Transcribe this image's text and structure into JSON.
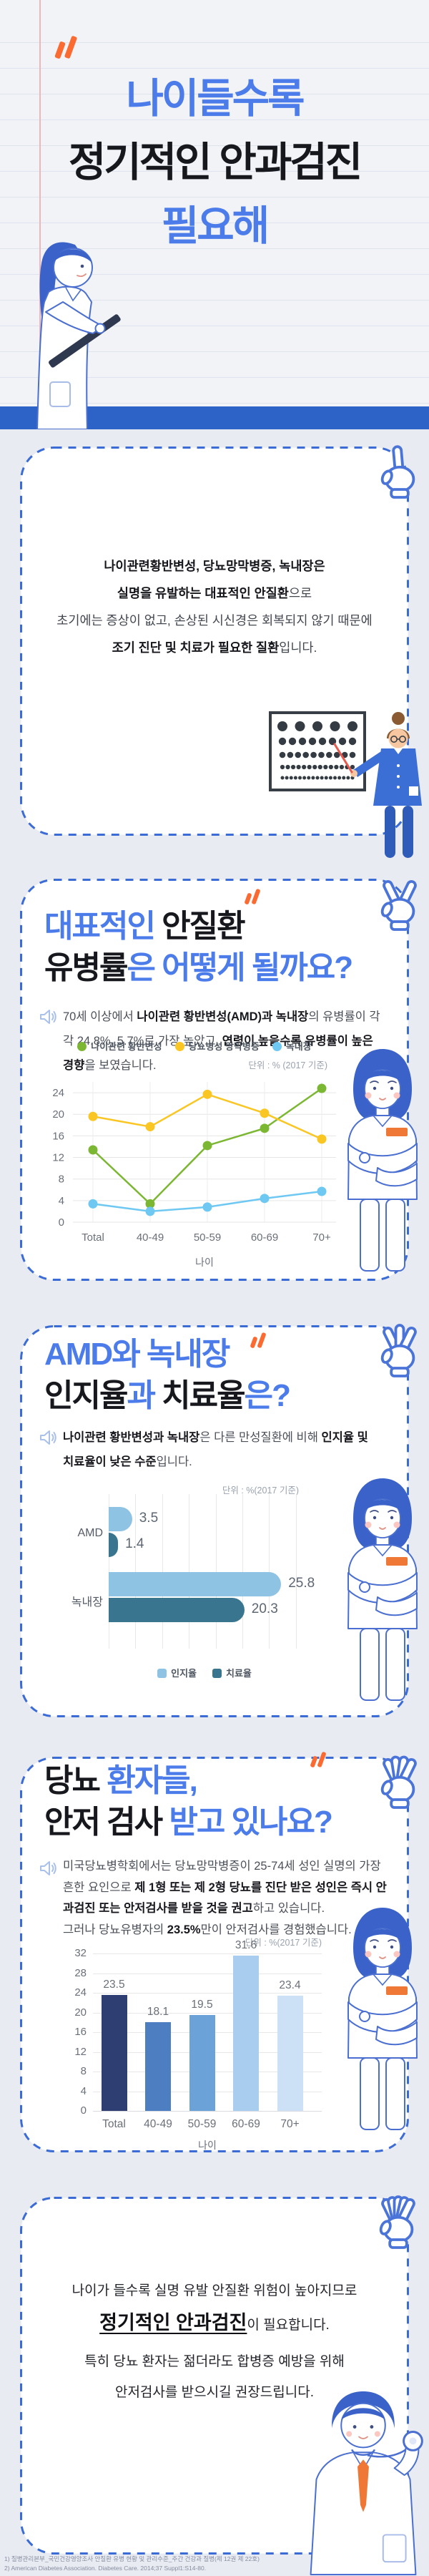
{
  "colors": {
    "accent_blue": "#4b7ce9",
    "band_blue": "#2d62c6",
    "border_blue": "#3b6cd6",
    "orange": "#fb6a30"
  },
  "icons": {
    "hands": "counting-hand-icons-1-to-5",
    "paragraph_marker": "megaphone-icon",
    "title_marker": "quote-accent"
  },
  "header": {
    "title_lines": [
      [
        {
          "t": "나이들수록",
          "c": "blue"
        }
      ],
      [
        {
          "t": "정기적인 안과검진",
          "c": "dark"
        }
      ],
      [
        {
          "t": "필요해",
          "c": "blue"
        }
      ]
    ]
  },
  "intro_card": {
    "hand_fingers": 1,
    "lines_rich": [
      {
        "t": "나이관련황반변성, 당뇨망막병증, 녹내장은",
        "b": 1
      },
      {
        "br": 1
      },
      {
        "t": "실명을 유발하는 대표적인 안질환",
        "b": 1
      },
      {
        "t": "으로"
      },
      {
        "br": 1
      },
      {
        "t": "초기에는 증상이 없고, 손상된 시신경은 회복되지 않기 때문에"
      },
      {
        "br": 1
      },
      {
        "t": "조기 진단 및 치료가 필요한 질환",
        "b": 1
      },
      {
        "t": "입니다."
      }
    ]
  },
  "section2": {
    "hand_fingers": 2,
    "title_lines": [
      [
        {
          "t": "대표적인 ",
          "c": "blue"
        },
        {
          "t": "안질환",
          "c": "dark"
        }
      ],
      [
        {
          "t": "유병률",
          "c": "dark"
        },
        {
          "t": "은 어떻게 될까요?",
          "c": "blue"
        }
      ]
    ],
    "paragraph": [
      {
        "t": "70세 이상에서 "
      },
      {
        "t": "나이관련 황반변성(AMD)과 녹내장",
        "b": 1
      },
      {
        "t": "의 유병률이 각각 24.8%, 5.7%로 가장 높았고, "
      },
      {
        "t": "연령이 높을수록 유병률이 높은 경향",
        "b": 1
      },
      {
        "t": "을 보였습니다."
      }
    ]
  },
  "section3": {
    "hand_fingers": 3,
    "title_lines": [
      [
        {
          "t": "AMD와 녹내장",
          "c": "blue"
        }
      ],
      [
        {
          "t": "인지율",
          "c": "dark"
        },
        {
          "t": "과 ",
          "c": "blue"
        },
        {
          "t": "치료율",
          "c": "dark"
        },
        {
          "t": "은?",
          "c": "blue"
        }
      ]
    ],
    "paragraph": [
      {
        "t": "나이관련 황반변성과 녹내장",
        "b": 1
      },
      {
        "t": "은 다른 만성질환에 비해 "
      },
      {
        "t": "인지율 및 치료율이 낮은 수준",
        "b": 1
      },
      {
        "t": "입니다."
      }
    ]
  },
  "section4": {
    "hand_fingers": 4,
    "title_lines": [
      [
        {
          "t": "당뇨 ",
          "c": "dark"
        },
        {
          "t": "환자들,",
          "c": "blue"
        }
      ],
      [
        {
          "t": "안저 검사 ",
          "c": "dark"
        },
        {
          "t": "받고 있나요?",
          "c": "blue"
        }
      ]
    ],
    "paragraph": [
      {
        "t": "미국당뇨병학회에서는 당뇨망막병증이 25-74세 성인 실명의 가장 흔한 요인으로 "
      },
      {
        "t": "제 1형 또는 제 2형 당뇨를 진단 받은 성인은 즉시 안과검진 또는 안저검사를 받을 것을 권고",
        "b": 1
      },
      {
        "t": "하고 있습니다."
      },
      {
        "br": 1
      },
      {
        "t": "그러나 당뇨유병자의 "
      },
      {
        "t": "23.5%",
        "b": 1
      },
      {
        "t": "만이 안저검사를 경험했습니다."
      }
    ]
  },
  "outro_card": {
    "hand_fingers": 5,
    "line1": "나이가 들수록 실명 유발 안질환 위험이 높아지므로",
    "line2_em": "정기적인 안과검진",
    "line2_rest": "이 필요합니다.",
    "line3": "특히 당뇨 환자는 젊더라도 합병증 예방을 위해",
    "line4": "안저검사를 받으시길 권장드립니다."
  },
  "sources": [
    "1) 질병관리본부_국민건강영양조사 안질환 유병 현황 및 관리수준_주간 건강과 질병(제 12권 제 22호)",
    "2) American Diabetes Association. Diabetes Care. 2014;37 Suppl1:S14-80."
  ],
  "chart_data": [
    {
      "type": "line",
      "unit_label": "단위 : % (2017 기준)",
      "xlabel": "나이",
      "categories": [
        "Total",
        "40-49",
        "50-59",
        "60-69",
        "70+"
      ],
      "ylim": [
        0,
        26
      ],
      "yticks": [
        0,
        4,
        8,
        12,
        16,
        20,
        24
      ],
      "grid": true,
      "legend_position": "top",
      "series": [
        {
          "name": "나이관련 황반변성",
          "color": "#7cb733",
          "values": [
            13.4,
            3.4,
            14.2,
            17.4,
            24.8
          ]
        },
        {
          "name": "당뇨병성 망막병증",
          "color": "#f9c623",
          "values": [
            19.6,
            17.7,
            23.7,
            20.2,
            15.4
          ]
        },
        {
          "name": "녹내장",
          "color": "#6ec8f2",
          "values": [
            3.4,
            2.0,
            2.8,
            4.4,
            5.7
          ]
        }
      ]
    },
    {
      "type": "bar-horizontal",
      "unit_label": "단위 : %(2017 기준)",
      "categories": [
        "AMD",
        "녹내장"
      ],
      "xlim": [
        0,
        28
      ],
      "grid": true,
      "legend_position": "bottom",
      "series": [
        {
          "name": "인지율",
          "color": "#8fc3e4",
          "values": [
            3.5,
            25.8
          ]
        },
        {
          "name": "치료율",
          "color": "#39758f",
          "values": [
            1.4,
            20.3
          ]
        }
      ]
    },
    {
      "type": "bar",
      "unit_label": "단위 : %(2017 기준)",
      "xlabel": "나이",
      "categories": [
        "Total",
        "40-49",
        "50-59",
        "60-69",
        "70+"
      ],
      "values": [
        23.5,
        18.1,
        19.5,
        31.6,
        23.4
      ],
      "bar_colors": [
        "#2e3e72",
        "#4d7ec2",
        "#6ba3d8",
        "#a9cdee",
        "#cde1f6"
      ],
      "ylim": [
        0,
        34
      ],
      "yticks": [
        0,
        4,
        8,
        12,
        16,
        20,
        24,
        28,
        32
      ],
      "grid": true
    }
  ]
}
